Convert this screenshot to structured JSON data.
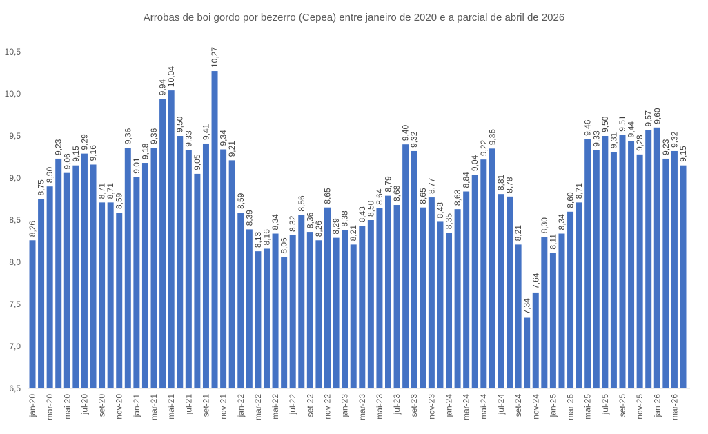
{
  "chart_data": {
    "type": "bar",
    "title": "Arrobas de boi gordo por bezerro (Cepea) entre janeiro de 2020 e a parcial de abril de 2026",
    "xlabel": "",
    "ylabel": "",
    "ylim": [
      6.5,
      10.5
    ],
    "yticks": [
      "6,5",
      "7,0",
      "7,5",
      "8,0",
      "8,5",
      "9,0",
      "9,5",
      "10,0",
      "10,5"
    ],
    "grid": false,
    "bar_color": "#4472C4",
    "categories": [
      "jan-20",
      "fev-20",
      "mar-20",
      "abr-20",
      "mai-20",
      "jun-20",
      "jul-20",
      "ago-20",
      "set-20",
      "out-20",
      "nov-20",
      "dez-20",
      "jan-21",
      "fev-21",
      "mar-21",
      "abr-21",
      "mai-21",
      "jun-21",
      "jul-21",
      "ago-21",
      "set-21",
      "out-21",
      "nov-21",
      "dez-21",
      "jan-22",
      "fev-22",
      "mar-22",
      "abr-22",
      "mai-22",
      "jun-22",
      "jul-22",
      "ago-22",
      "set-22",
      "out-22",
      "nov-22",
      "dez-22",
      "jan-23",
      "fev-23",
      "mar-23",
      "abr-23",
      "mai-23",
      "jun-23",
      "jul-23",
      "ago-23",
      "set-23",
      "out-23",
      "nov-23",
      "dez-23",
      "jan-24",
      "fev-24",
      "mar-24",
      "abr-24",
      "mai-24",
      "jun-24",
      "jul-24",
      "ago-24",
      "set-24",
      "out-24",
      "nov-24",
      "dez-24",
      "jan-25",
      "fev-25",
      "mar-25",
      "abr-25",
      "mai-25",
      "jun-25",
      "jul-25",
      "ago-25",
      "set-25",
      "out-25",
      "nov-25",
      "dez-25",
      "jan-26",
      "fev-26",
      "mar-26",
      "abr-26"
    ],
    "values": [
      8.26,
      8.75,
      8.9,
      9.23,
      9.06,
      9.15,
      9.29,
      9.16,
      8.71,
      8.71,
      8.59,
      9.36,
      9.01,
      9.18,
      9.36,
      9.94,
      10.04,
      9.5,
      9.33,
      9.05,
      9.41,
      10.27,
      9.34,
      9.21,
      8.59,
      8.39,
      8.13,
      8.16,
      8.34,
      8.06,
      8.32,
      8.56,
      8.36,
      8.26,
      8.65,
      8.29,
      8.38,
      8.21,
      8.43,
      8.5,
      8.64,
      8.79,
      8.68,
      9.4,
      9.32,
      8.65,
      8.77,
      8.48,
      8.35,
      8.63,
      8.84,
      9.04,
      9.22,
      9.35,
      8.81,
      8.78,
      8.21,
      7.34,
      7.64,
      8.3,
      8.11,
      8.34,
      8.6,
      8.71,
      9.46,
      9.33,
      9.5,
      9.31,
      9.51,
      9.44,
      9.28,
      9.57,
      9.6,
      9.23,
      9.32,
      9.15
    ],
    "data_labels": true,
    "x_tick_labels_shown": "every other month starting jan-20"
  }
}
